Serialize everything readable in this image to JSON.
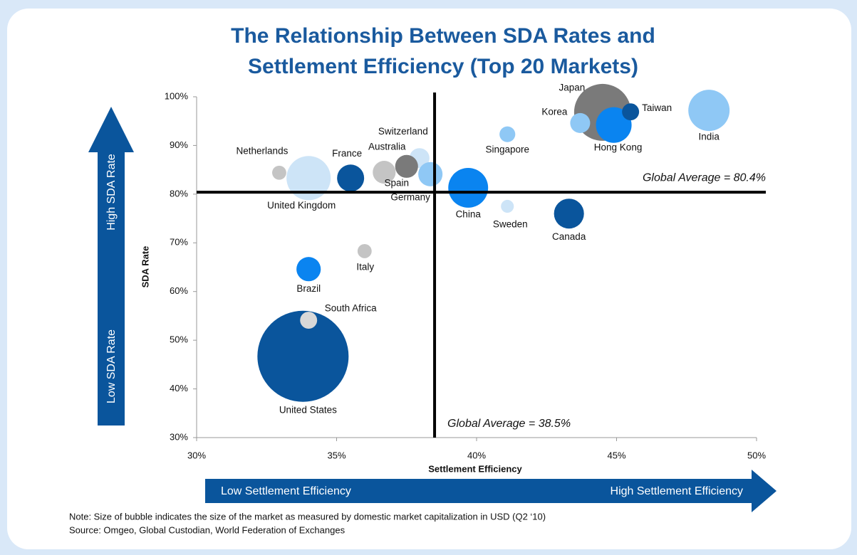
{
  "chart_data": {
    "type": "scatter",
    "title": [
      "The Relationship Between SDA Rates and",
      "Settlement Efficiency (Top 20 Markets)"
    ],
    "xlabel": "Settlement Efficiency",
    "ylabel": "SDA Rate",
    "xlim": [
      30,
      50
    ],
    "ylim": [
      30,
      100
    ],
    "xticks": [
      {
        "value": 30,
        "label": "30%"
      },
      {
        "value": 35,
        "label": "35%"
      },
      {
        "value": 40,
        "label": "40%"
      },
      {
        "value": 45,
        "label": "45%"
      },
      {
        "value": 50,
        "label": "50%"
      }
    ],
    "yticks": [
      {
        "value": 30,
        "label": "30%"
      },
      {
        "value": 40,
        "label": "40%"
      },
      {
        "value": 50,
        "label": "50%"
      },
      {
        "value": 60,
        "label": "60%"
      },
      {
        "value": 70,
        "label": "70%"
      },
      {
        "value": 80,
        "label": "80%"
      },
      {
        "value": 90,
        "label": "90%"
      },
      {
        "value": 100,
        "label": "100%"
      }
    ],
    "labels": [
      "United States",
      "South Africa",
      "Brazil",
      "Italy",
      "Netherlands",
      "United Kingdom",
      "France",
      "Australia",
      "Switzerland",
      "Spain",
      "Germany",
      "China",
      "Singapore",
      "Sweden",
      "Canada",
      "Japan",
      "Korea",
      "Hong Kong",
      "Taiwan",
      "India"
    ],
    "x": [
      33.8,
      34.0,
      34.0,
      36.0,
      32.95,
      34.0,
      35.5,
      36.7,
      37.96,
      37.5,
      38.35,
      39.7,
      41.1,
      41.1,
      43.3,
      44.5,
      43.7,
      44.9,
      45.5,
      48.3
    ],
    "y": [
      46.7,
      54.1,
      64.6,
      68.3,
      84.4,
      83.3,
      83.3,
      84.5,
      87.4,
      85.7,
      84.1,
      81.3,
      92.3,
      77.5,
      76.0,
      96.8,
      94.6,
      94.2,
      96.9,
      97.2
    ],
    "sizes": [
      100,
      3.5,
      7.1,
      2.4,
      2.4,
      23.5,
      8.8,
      6.3,
      4.8,
      6.3,
      7.1,
      19.1,
      3.0,
      2.0,
      10.8,
      39,
      4.8,
      15.3,
      3.5,
      20.5
    ],
    "colors": [
      "#0a559c",
      "#d8d8d8",
      "#0a84f0",
      "#c4c4c4",
      "#c4c4c4",
      "#cde4f7",
      "#0a559c",
      "#c4c4c4",
      "#cde4f7",
      "#7a7a7a",
      "#8fc8f5",
      "#0a84f0",
      "#8fc8f5",
      "#cde4f7",
      "#0a559c",
      "#7a7a7a",
      "#8fc8f5",
      "#0a84f0",
      "#0a559c",
      "#8fc8f5"
    ],
    "reference_lines": {
      "x": 38.5,
      "x_label": "Global Average = 38.5%",
      "y": 80.4,
      "y_label": "Global Average = 80.4%"
    },
    "y_arrow": {
      "high": "High SDA Rate",
      "low": "Low SDA Rate"
    },
    "x_arrow": {
      "low": "Low Settlement Efficiency",
      "high": "High Settlement Efficiency"
    },
    "note": "Note: Size of bubble indicates the size of the market as measured by domestic market capitalization in USD (Q2 ‘10)",
    "source": "Source: Omgeo, Global Custodian, World Federation of Exchanges"
  }
}
